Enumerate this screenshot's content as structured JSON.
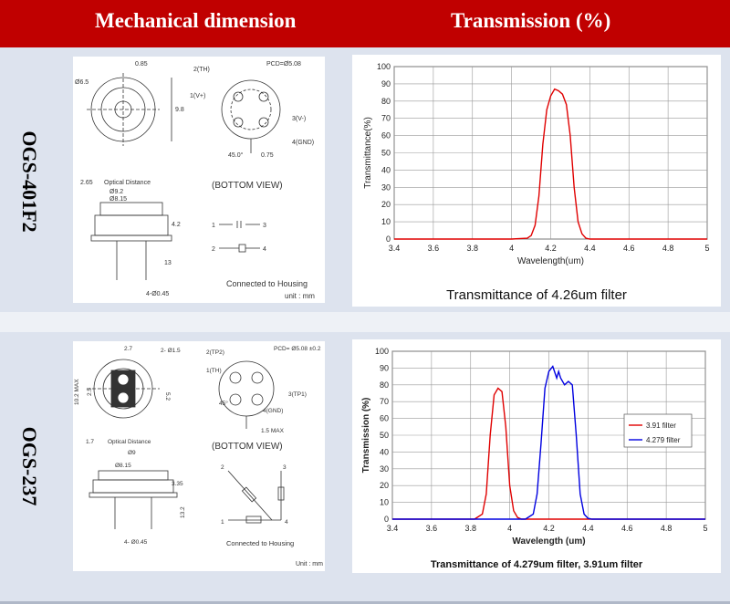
{
  "header": {
    "left_title": "Mechanical dimension",
    "right_title": "Transmission (%)"
  },
  "rows": [
    {
      "label": "OGS-401F2",
      "drawing": {
        "dims": [
          "0.85",
          "Ø6.5",
          "9.8",
          "PCD=Ø5.08",
          "2(TH)",
          "1(V+)",
          "3(V-)",
          "4(GND)",
          "45.0°",
          "0.75",
          "2.65",
          "Optical Distance",
          "Ø9.2",
          "Ø8.15",
          "4.2",
          "13",
          "4-Ø0.45"
        ],
        "bottom_view": "(BOTTOM VIEW)",
        "pin_a": [
          "1",
          "3"
        ],
        "pin_b": [
          "2",
          "4"
        ],
        "connected": "Connected to Housing",
        "unit": "unit : mm"
      },
      "chart_caption": "Transmittance of 4.26um filter"
    },
    {
      "label": "OGS-237",
      "drawing": {
        "dims": [
          "2.7",
          "2- Ø1.5",
          "10.2 MAX",
          "2.5",
          "5.2",
          "PCD= Ø5.08 ±0.2",
          "2(TP2)",
          "1(TH)",
          "3(TP1)",
          "4(GND)",
          "45°",
          "1.5 MAX",
          "1.7",
          "Optical Distance",
          "Ø9",
          "Ø8.15",
          "3.35",
          "13.2",
          "4- Ø0.45"
        ],
        "bottom_view": "(BOTTOM VIEW)",
        "pins": [
          "2",
          "3",
          "1",
          "4"
        ],
        "connected": "Connected to Housing",
        "unit": "Unit : mm"
      },
      "chart_caption": "Transmittance of 4.279um filter,  3.91um filter"
    }
  ],
  "chart_data": [
    {
      "type": "line",
      "xlabel": "Wavelength(um)",
      "ylabel": "Transmittance(%)",
      "xlim": [
        3.4,
        5
      ],
      "ylim": [
        0,
        100
      ],
      "xticks": [
        "3.4",
        "3.6",
        "3.8",
        "4",
        "4.2",
        "4.4",
        "4.6",
        "4.8",
        "5"
      ],
      "yticks": [
        "0",
        "10",
        "20",
        "30",
        "40",
        "50",
        "60",
        "70",
        "80",
        "90",
        "100"
      ],
      "grid": true,
      "series": [
        {
          "color": "#e00000",
          "x": [
            3.4,
            4.0,
            4.08,
            4.1,
            4.12,
            4.14,
            4.16,
            4.18,
            4.2,
            4.22,
            4.24,
            4.26,
            4.28,
            4.3,
            4.32,
            4.34,
            4.36,
            4.38,
            4.4,
            5.0
          ],
          "y": [
            0,
            0,
            0.5,
            2,
            8,
            25,
            55,
            75,
            83,
            87,
            86,
            84,
            78,
            60,
            30,
            10,
            3,
            0.5,
            0,
            0
          ]
        }
      ]
    },
    {
      "type": "line",
      "xlabel": "Wavelength (um)",
      "ylabel": "Transmission (%)",
      "xlim": [
        3.4,
        5
      ],
      "ylim": [
        0,
        100
      ],
      "xticks": [
        "3.4",
        "3.6",
        "3.8",
        "4",
        "4.2",
        "4.4",
        "4.6",
        "4.8",
        "5"
      ],
      "yticks": [
        "0",
        "10",
        "20",
        "30",
        "40",
        "50",
        "60",
        "70",
        "80",
        "90",
        "100"
      ],
      "grid": true,
      "legend": "right",
      "series": [
        {
          "name": "3.91 filter",
          "color": "#e00000",
          "x": [
            3.4,
            3.82,
            3.86,
            3.88,
            3.9,
            3.92,
            3.94,
            3.96,
            3.98,
            4.0,
            4.02,
            4.04,
            4.06,
            5.0
          ],
          "y": [
            0,
            0,
            3,
            15,
            50,
            74,
            78,
            76,
            55,
            20,
            5,
            1,
            0,
            0
          ]
        },
        {
          "name": "4.279 filter",
          "color": "#0000e0",
          "x": [
            3.4,
            4.08,
            4.12,
            4.14,
            4.16,
            4.18,
            4.2,
            4.22,
            4.24,
            4.25,
            4.26,
            4.28,
            4.3,
            4.32,
            4.34,
            4.36,
            4.38,
            4.4,
            4.42,
            5.0
          ],
          "y": [
            0,
            0,
            3,
            15,
            45,
            78,
            88,
            91,
            84,
            88,
            84,
            80,
            82,
            80,
            50,
            15,
            3,
            0.5,
            0,
            0
          ]
        }
      ]
    }
  ]
}
